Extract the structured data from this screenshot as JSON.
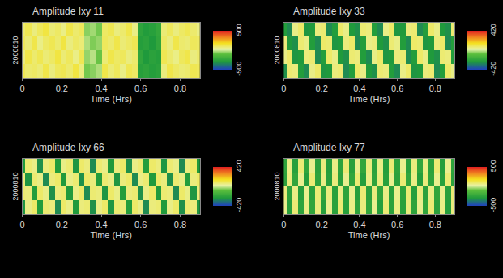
{
  "chart_data": [
    {
      "type": "heatmap",
      "title": "Amplitude Ixy 11",
      "x_label": "Time (Hrs)",
      "y_label": "2000810",
      "tick_labels": "x",
      "x": [
        0,
        0.03,
        0.06,
        0.09,
        0.12,
        0.15,
        0.18,
        0.21,
        0.24,
        0.27,
        0.3,
        0.33,
        0.36,
        0.39,
        0.42,
        0.45,
        0.48,
        0.51,
        0.54,
        0.57,
        0.6,
        0.63,
        0.66,
        0.69,
        0.72,
        0.75,
        0.78,
        0.81,
        0.84,
        0.87,
        0.9
      ],
      "xlim": [
        0,
        0.9
      ],
      "xticks": [
        0,
        0.2,
        0.4,
        0.6,
        0.8
      ],
      "colorbar_range": [
        -500,
        500
      ],
      "colorbar_ticks": [
        -500,
        500
      ],
      "cells": [
        [
          120,
          90,
          100,
          80,
          130,
          70,
          110,
          120,
          90,
          140,
          70,
          -80,
          -60,
          -30,
          130,
          80,
          110,
          60,
          120,
          100,
          -270,
          -250,
          -280,
          -260,
          70,
          130,
          100,
          80,
          90,
          120,
          110
        ],
        [
          70,
          130,
          90,
          120,
          80,
          100,
          140,
          80,
          110,
          60,
          120,
          -50,
          -20,
          -90,
          80,
          130,
          100,
          110,
          70,
          90,
          -240,
          -300,
          -260,
          -280,
          120,
          90,
          60,
          110,
          130,
          70,
          90
        ],
        [
          110,
          80,
          130,
          60,
          100,
          120,
          90,
          140,
          70,
          100,
          80,
          -30,
          -70,
          -50,
          110,
          90,
          130,
          80,
          100,
          120,
          -280,
          -260,
          -300,
          -240,
          100,
          70,
          130,
          90,
          80,
          110,
          100
        ],
        [
          90,
          120,
          70,
          110,
          140,
          80,
          100,
          60,
          130,
          90,
          110,
          -60,
          -40,
          -80,
          100,
          120,
          70,
          90,
          130,
          60,
          -250,
          -290,
          -270,
          -230,
          80,
          110,
          70,
          100,
          120,
          90,
          60
        ]
      ]
    },
    {
      "type": "heatmap",
      "title": "Amplitude Ixy 33",
      "x_label": "Time (Hrs)",
      "y_label": "2000810",
      "tick_labels": "x",
      "x": [
        0,
        0.03,
        0.06,
        0.09,
        0.12,
        0.15,
        0.18,
        0.21,
        0.24,
        0.27,
        0.3,
        0.33,
        0.36,
        0.39,
        0.42,
        0.45,
        0.48,
        0.51,
        0.54,
        0.57,
        0.6,
        0.63,
        0.66,
        0.69,
        0.72,
        0.75,
        0.78,
        0.81,
        0.84,
        0.87,
        0.9
      ],
      "xlim": [
        0,
        0.9
      ],
      "xticks": [
        0,
        0.2,
        0.4,
        0.6,
        0.8
      ],
      "colorbar_range": [
        -420,
        420
      ],
      "colorbar_ticks": [
        -420,
        420
      ],
      "cells": [
        [
          -270,
          70,
          60,
          -240,
          -280,
          50,
          80,
          -260,
          -250,
          60,
          70,
          -280,
          -240,
          80,
          50,
          -250,
          -270,
          70,
          60,
          -240,
          -280,
          50,
          80,
          -260,
          -250,
          60,
          70,
          -280,
          -240,
          80,
          50
        ],
        [
          50,
          80,
          -260,
          -250,
          60,
          70,
          -280,
          -240,
          80,
          50,
          -250,
          -270,
          70,
          60,
          -240,
          -280,
          50,
          80,
          -260,
          -250,
          60,
          70,
          -280,
          -240,
          80,
          50,
          -250,
          -270,
          70,
          60,
          -240
        ],
        [
          60,
          -250,
          -270,
          70,
          50,
          -240,
          -280,
          80,
          70,
          -260,
          -250,
          60,
          80,
          -280,
          -240,
          50,
          60,
          -250,
          -270,
          70,
          50,
          -240,
          -280,
          80,
          70,
          -260,
          -250,
          60,
          80,
          -280,
          -240
        ],
        [
          -240,
          -280,
          50,
          80,
          -260,
          -250,
          60,
          70,
          -280,
          -240,
          80,
          50,
          -250,
          -270,
          70,
          60,
          -240,
          -280,
          50,
          80,
          -260,
          -250,
          60,
          70,
          -280,
          -240,
          80,
          50,
          -250,
          -270,
          70
        ]
      ]
    },
    {
      "type": "heatmap",
      "title": "Amplitude Ixy 66",
      "x_label": "Time (Hrs)",
      "y_label": "2000810",
      "tick_labels": "x",
      "x": [
        0,
        0.03,
        0.06,
        0.09,
        0.12,
        0.15,
        0.18,
        0.21,
        0.24,
        0.27,
        0.3,
        0.33,
        0.36,
        0.39,
        0.42,
        0.45,
        0.48,
        0.51,
        0.54,
        0.57,
        0.6,
        0.63,
        0.66,
        0.69,
        0.72,
        0.75,
        0.78,
        0.81,
        0.84,
        0.87,
        0.9
      ],
      "xlim": [
        0,
        0.9
      ],
      "xticks": [
        0,
        0.2,
        0.4,
        0.6,
        0.8
      ],
      "colorbar_range": [
        -420,
        420
      ],
      "colorbar_ticks": [
        -420,
        420
      ],
      "cells": [
        [
          -260,
          50,
          80,
          -240,
          70,
          60,
          -280,
          80,
          50,
          -250,
          60,
          70,
          -270,
          50,
          80,
          -260,
          70,
          60,
          -240,
          80,
          50,
          -280,
          60,
          70,
          -250,
          50,
          80,
          -270,
          70,
          60,
          -260
        ],
        [
          70,
          60,
          -240,
          80,
          50,
          -270,
          60,
          70,
          -250,
          50,
          80,
          -280,
          70,
          60,
          -260,
          80,
          50,
          -240,
          60,
          70,
          -270,
          50,
          80,
          -250,
          70,
          60,
          -280,
          80,
          50,
          -260,
          60
        ],
        [
          60,
          -260,
          70,
          50,
          -280,
          60,
          80,
          -250,
          50,
          70,
          -270,
          80,
          60,
          -240,
          70,
          50,
          -260,
          60,
          80,
          -280,
          50,
          70,
          -250,
          80,
          60,
          -270,
          70,
          50,
          -240,
          60,
          80
        ],
        [
          -250,
          70,
          50,
          -270,
          60,
          80,
          -240,
          50,
          70,
          -260,
          80,
          60,
          -280,
          70,
          50,
          -250,
          60,
          80,
          -270,
          50,
          70,
          -240,
          80,
          60,
          -260,
          70,
          50,
          -280,
          60,
          80,
          -250
        ]
      ]
    },
    {
      "type": "heatmap",
      "title": "Amplitude Ixy 77",
      "x_label": "Time (Hrs)",
      "y_label": "2000810",
      "tick_labels": "x",
      "x": [
        0,
        0.03,
        0.06,
        0.09,
        0.12,
        0.15,
        0.18,
        0.21,
        0.24,
        0.27,
        0.3,
        0.33,
        0.36,
        0.39,
        0.42,
        0.45,
        0.48,
        0.51,
        0.54,
        0.57,
        0.6,
        0.63,
        0.66,
        0.69,
        0.72,
        0.75,
        0.78,
        0.81,
        0.84,
        0.87,
        0.9
      ],
      "xlim": [
        0,
        0.9
      ],
      "xticks": [
        0,
        0.2,
        0.4,
        0.6,
        0.8
      ],
      "colorbar_range": [
        -500,
        500
      ],
      "colorbar_ticks": [
        -500,
        500
      ],
      "cells": [
        [
          50,
          -270,
          80,
          -250,
          60,
          -240,
          70,
          -280,
          50,
          -260,
          80,
          -270,
          60,
          -250,
          70,
          -240,
          50,
          -280,
          80,
          -260,
          60,
          -270,
          70,
          -250,
          50,
          -240,
          80,
          -260,
          60,
          -280,
          70
        ],
        [
          70,
          -250,
          60,
          -280,
          50,
          -260,
          80,
          -240,
          70,
          -270,
          60,
          -250,
          50,
          -280,
          80,
          -260,
          70,
          -240,
          60,
          -270,
          50,
          -250,
          80,
          -280,
          70,
          -260,
          60,
          -240,
          50,
          -270,
          80
        ],
        [
          -260,
          70,
          -240,
          50,
          -280,
          80,
          -250,
          60,
          -270,
          70,
          -260,
          50,
          -240,
          80,
          -280,
          60,
          -250,
          70,
          -270,
          50,
          -260,
          80,
          -240,
          60,
          -280,
          70,
          -250,
          50,
          -270,
          80,
          -260
        ],
        [
          -250,
          60,
          -270,
          80,
          -240,
          50,
          -260,
          70,
          -280,
          60,
          -250,
          80,
          -270,
          50,
          -240,
          70,
          -260,
          60,
          -280,
          80,
          -250,
          50,
          -270,
          70,
          -240,
          60,
          -260,
          80,
          -280,
          50,
          -250
        ]
      ]
    }
  ]
}
